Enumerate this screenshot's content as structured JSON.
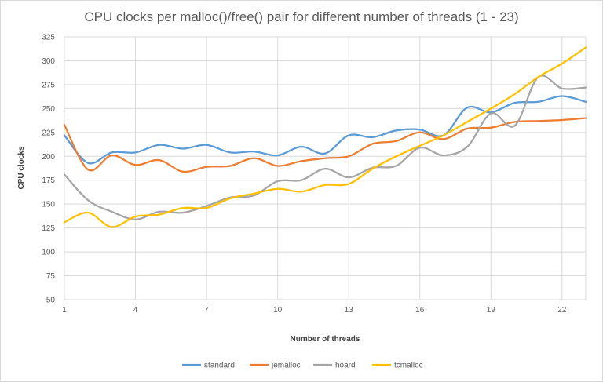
{
  "chart_data": {
    "type": "line",
    "title": "CPU clocks per malloc()/free() pair for different number of threads (1 - 23)",
    "xlabel": "Number of threads",
    "ylabel": "CPU clocks",
    "x": [
      1,
      2,
      3,
      4,
      5,
      6,
      7,
      8,
      9,
      10,
      11,
      12,
      13,
      14,
      15,
      16,
      17,
      18,
      19,
      20,
      21,
      22,
      23
    ],
    "xlim": [
      1,
      23
    ],
    "ylim": [
      50,
      325
    ],
    "x_ticks": [
      "1",
      "4",
      "7",
      "10",
      "13",
      "16",
      "19",
      "22"
    ],
    "y_ticks": [
      "50",
      "75",
      "100",
      "125",
      "150",
      "175",
      "200",
      "225",
      "250",
      "275",
      "300",
      "325"
    ],
    "grid": "vertical and horizontal",
    "legend_position": "bottom",
    "series": [
      {
        "name": "standard",
        "color": "#5b9bd5",
        "values": [
          222,
          193,
          204,
          204,
          212,
          208,
          212,
          204,
          205,
          201,
          210,
          203,
          222,
          220,
          227,
          228,
          222,
          251,
          246,
          256,
          257,
          263,
          257
        ]
      },
      {
        "name": "jemalloc",
        "color": "#ed7d31",
        "values": [
          233,
          186,
          201,
          191,
          196,
          184,
          189,
          190,
          198,
          190,
          195,
          198,
          200,
          213,
          216,
          225,
          218,
          229,
          230,
          236,
          237,
          238,
          240
        ]
      },
      {
        "name": "hoard",
        "color": "#a5a5a5",
        "values": [
          181,
          154,
          142,
          134,
          142,
          141,
          148,
          157,
          159,
          174,
          175,
          187,
          178,
          188,
          190,
          209,
          201,
          210,
          245,
          232,
          283,
          271,
          272
        ]
      },
      {
        "name": "tcmalloc",
        "color": "#ffc000",
        "values": [
          131,
          141,
          126,
          137,
          139,
          146,
          146,
          156,
          161,
          166,
          163,
          170,
          171,
          187,
          200,
          211,
          222,
          236,
          250,
          265,
          283,
          297,
          314
        ]
      }
    ]
  }
}
